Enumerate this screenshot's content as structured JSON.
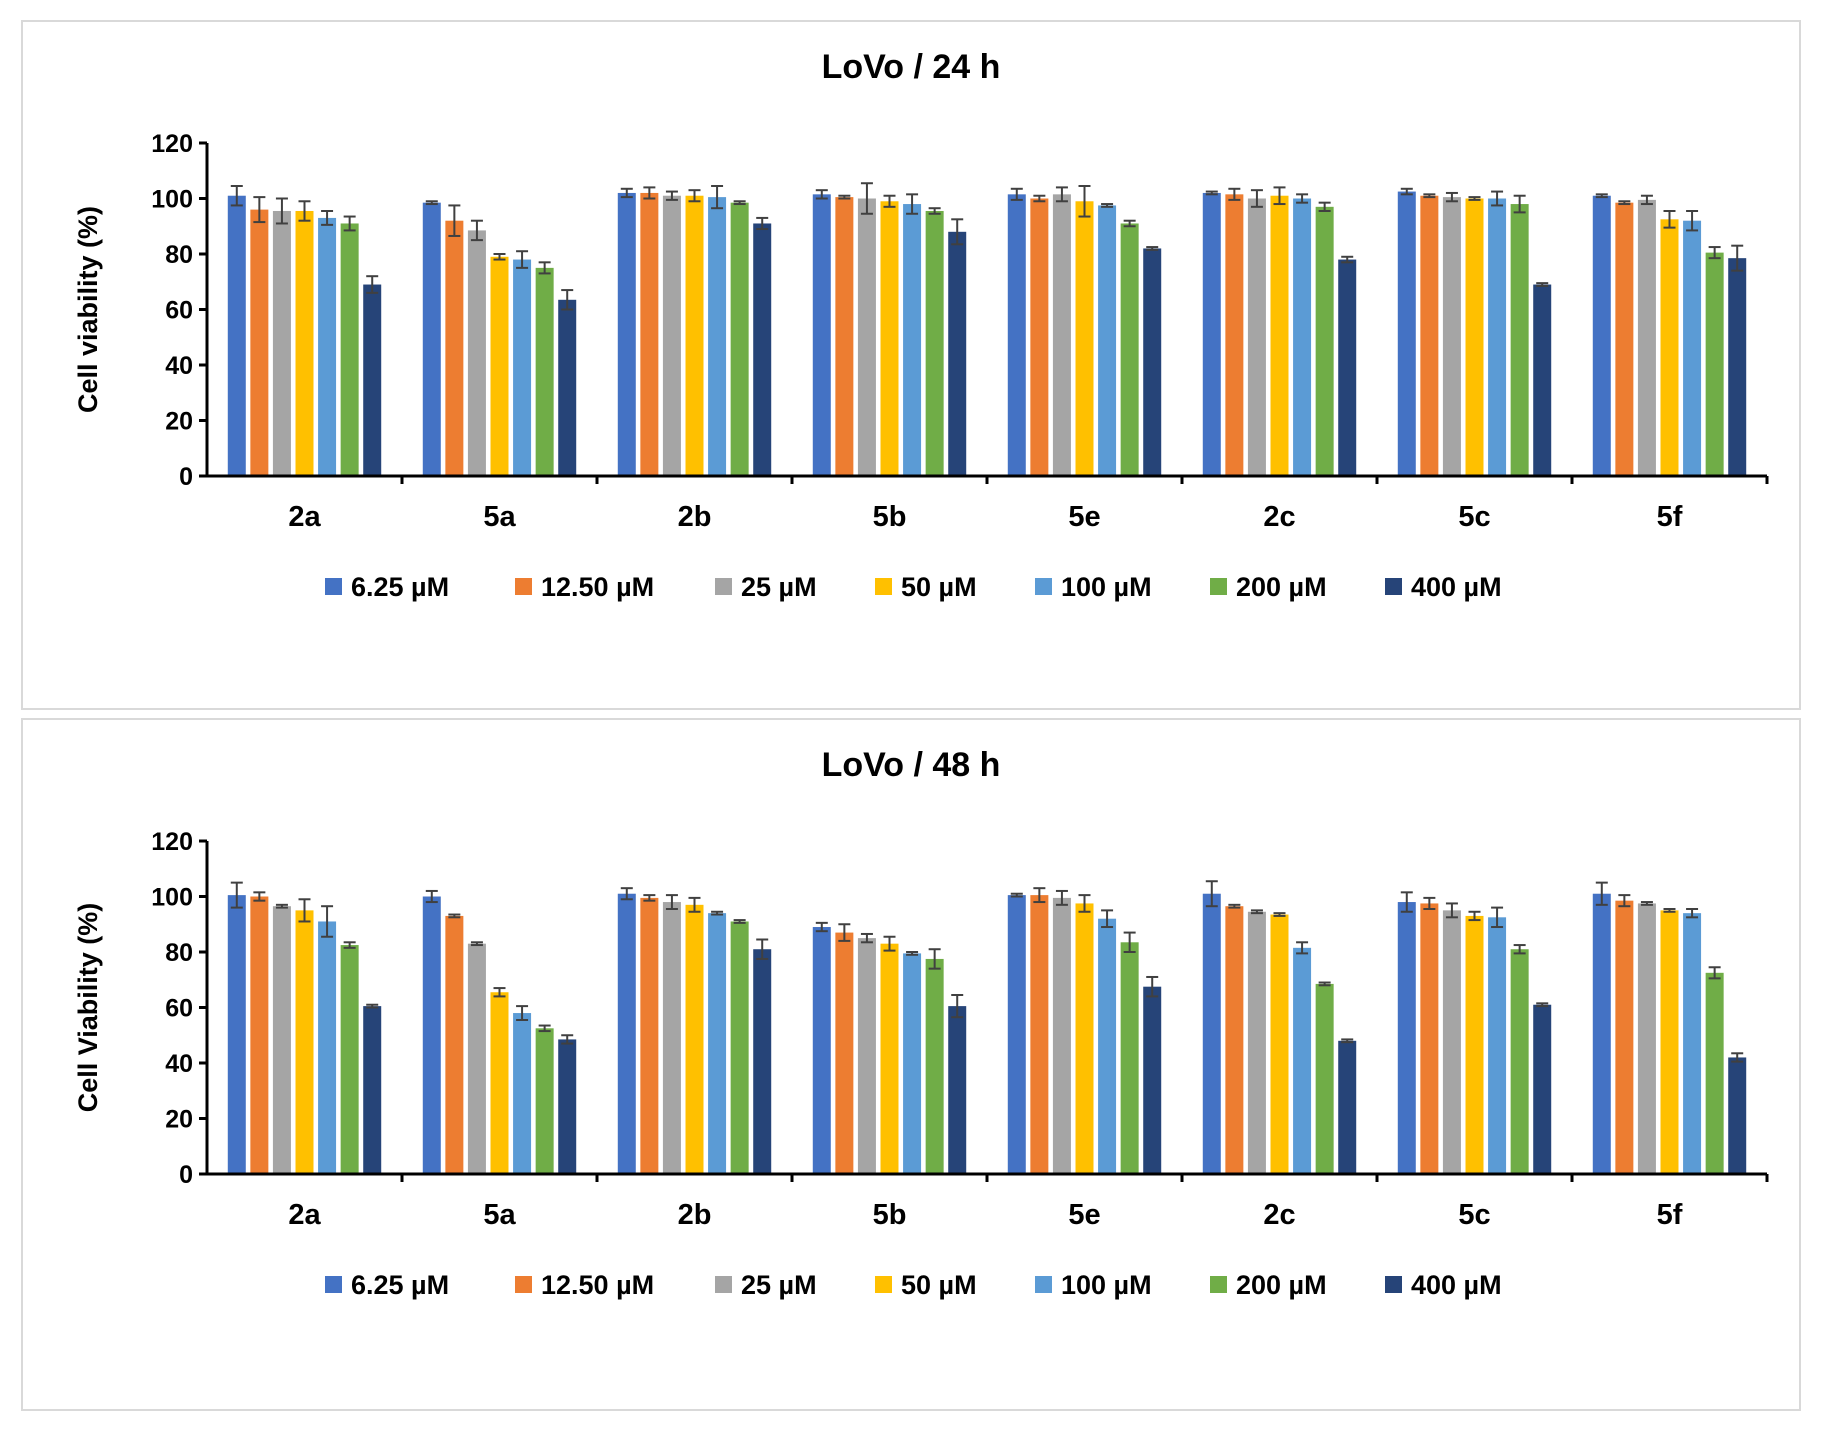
{
  "colors": {
    "series": [
      "#4472C4",
      "#ED7D31",
      "#A5A5A5",
      "#FFC000",
      "#5B9BD5",
      "#70AD47",
      "#264478"
    ],
    "axis": "#000000",
    "error_bar": "#404040",
    "panel_border": "#D9D9D9"
  },
  "chart_data": [
    {
      "type": "bar",
      "title": "LoVo / 24 h",
      "xlabel": "",
      "ylabel": "Cell viability (%)",
      "ylim": [
        0,
        120
      ],
      "yticks": [
        0,
        20,
        40,
        60,
        80,
        100,
        120
      ],
      "legend_position": "bottom",
      "grid": false,
      "categories": [
        "2a",
        "5a",
        "2b",
        "5b",
        "5e",
        "2c",
        "5c",
        "5f"
      ],
      "series": [
        {
          "name": "6.25 µM",
          "values": [
            101,
            98.5,
            102,
            101.5,
            101.5,
            102,
            102.5,
            101
          ],
          "errors": [
            3.5,
            0.5,
            1.5,
            1.5,
            2,
            0.5,
            1,
            0.5
          ]
        },
        {
          "name": "12.50 µM",
          "values": [
            96,
            92,
            102,
            100.5,
            100,
            101.5,
            101,
            98.5
          ],
          "errors": [
            4.5,
            5.5,
            2,
            0.5,
            1,
            2,
            0.5,
            0.5
          ]
        },
        {
          "name": "25 µM",
          "values": [
            95.5,
            88.5,
            101,
            100,
            101.5,
            100,
            100.5,
            99.5
          ],
          "errors": [
            4.5,
            3.5,
            1.5,
            5.5,
            2.5,
            3,
            1.5,
            1.5
          ]
        },
        {
          "name": "50 µM",
          "values": [
            95.5,
            79,
            101,
            99,
            99,
            101,
            100,
            92.5
          ],
          "errors": [
            3.5,
            1,
            2,
            2,
            5.5,
            3,
            0.5,
            3
          ]
        },
        {
          "name": "100 µM",
          "values": [
            93,
            78,
            100.5,
            98,
            97.5,
            100,
            100,
            92
          ],
          "errors": [
            2.5,
            3,
            4,
            3.5,
            0.5,
            1.5,
            2.5,
            3.5
          ]
        },
        {
          "name": "200 µM",
          "values": [
            91,
            75,
            98.5,
            95.5,
            91,
            97,
            98,
            80.5
          ],
          "errors": [
            2.5,
            2,
            0.5,
            1,
            1,
            1.5,
            3,
            2
          ]
        },
        {
          "name": "400 µM",
          "values": [
            69,
            63.5,
            91,
            88,
            82,
            78,
            69,
            78.5
          ],
          "errors": [
            3,
            3.5,
            2,
            4.5,
            0.5,
            1,
            0.5,
            4.5
          ]
        }
      ]
    },
    {
      "type": "bar",
      "title": "LoVo / 48 h",
      "xlabel": "",
      "ylabel": "Cell Viability (%)",
      "ylim": [
        0,
        120
      ],
      "yticks": [
        0,
        20,
        40,
        60,
        80,
        100,
        120
      ],
      "legend_position": "bottom",
      "grid": false,
      "categories": [
        "2a",
        "5a",
        "2b",
        "5b",
        "5e",
        "2c",
        "5c",
        "5f"
      ],
      "series": [
        {
          "name": "6.25 µM",
          "values": [
            100.5,
            100,
            101,
            89,
            100.5,
            101,
            98,
            101
          ],
          "errors": [
            4.5,
            2,
            2,
            1.5,
            0.5,
            4.5,
            3.5,
            4
          ]
        },
        {
          "name": "12.50 µM",
          "values": [
            100,
            93,
            99.5,
            87,
            100.5,
            96.5,
            97.5,
            98.5
          ],
          "errors": [
            1.5,
            0.5,
            1,
            3,
            2.5,
            0.5,
            2,
            2
          ]
        },
        {
          "name": "25 µM",
          "values": [
            96.5,
            83,
            98,
            85,
            99.5,
            94.5,
            95,
            97.5
          ],
          "errors": [
            0.5,
            0.5,
            2.5,
            1.5,
            2.5,
            0.5,
            2.5,
            0.5
          ]
        },
        {
          "name": "50 µM",
          "values": [
            95,
            65.5,
            97,
            83,
            97.5,
            93.5,
            93,
            95
          ],
          "errors": [
            4,
            1.5,
            2.5,
            2.5,
            3,
            0.5,
            1.5,
            0.5
          ]
        },
        {
          "name": "100 µM",
          "values": [
            91,
            58,
            94,
            79.5,
            92,
            81.5,
            92.5,
            94
          ],
          "errors": [
            5.5,
            2.5,
            0.5,
            0.5,
            3,
            2,
            3.5,
            1.5
          ]
        },
        {
          "name": "200 µM",
          "values": [
            82.5,
            52.5,
            91,
            77.5,
            83.5,
            68.5,
            81,
            72.5
          ],
          "errors": [
            1,
            1,
            0.5,
            3.5,
            3.5,
            0.5,
            1.5,
            2
          ]
        },
        {
          "name": "400 µM",
          "values": [
            60.5,
            48.5,
            81,
            60.5,
            67.5,
            48,
            61,
            42
          ],
          "errors": [
            0.5,
            1.5,
            3.5,
            4,
            3.5,
            0.5,
            0.5,
            1.5
          ]
        }
      ]
    }
  ]
}
